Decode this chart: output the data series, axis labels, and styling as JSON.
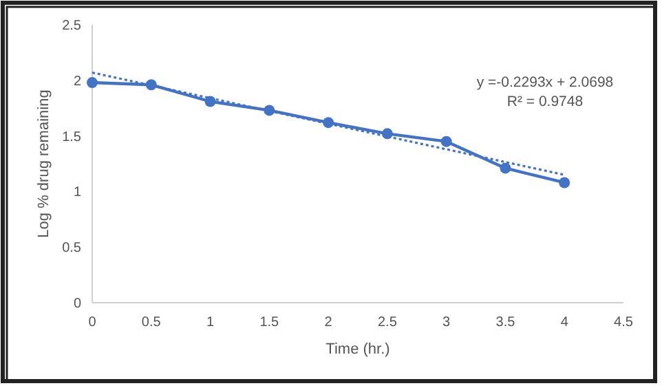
{
  "chart_data": {
    "type": "line",
    "xlabel": "Time (hr.)",
    "ylabel": "Log % drug remaining",
    "xlim": [
      0,
      4.5
    ],
    "xticks": [
      0,
      0.5,
      1,
      1.5,
      2,
      2.5,
      3,
      3.5,
      4,
      4.5
    ],
    "ylim": [
      0,
      2.5
    ],
    "yticks": [
      0,
      0.5,
      1,
      1.5,
      2,
      2.5
    ],
    "grid": false,
    "series": [
      {
        "color": "#4472c4",
        "x": [
          0,
          0.5,
          1,
          1.5,
          2,
          2.5,
          3,
          3.5,
          4
        ],
        "values": [
          1.98,
          1.96,
          1.81,
          1.73,
          1.62,
          1.52,
          1.45,
          1.21,
          1.08
        ],
        "marker": "circle",
        "line_style": "solid"
      },
      {
        "color": "#4472c4",
        "x": [
          0,
          4
        ],
        "values": [
          2.07,
          1.15
        ],
        "marker": "none",
        "line_style": "dotted"
      }
    ],
    "annotations": [
      "y =-0.2293x + 2.0698",
      "R² = 0.9748"
    ]
  }
}
